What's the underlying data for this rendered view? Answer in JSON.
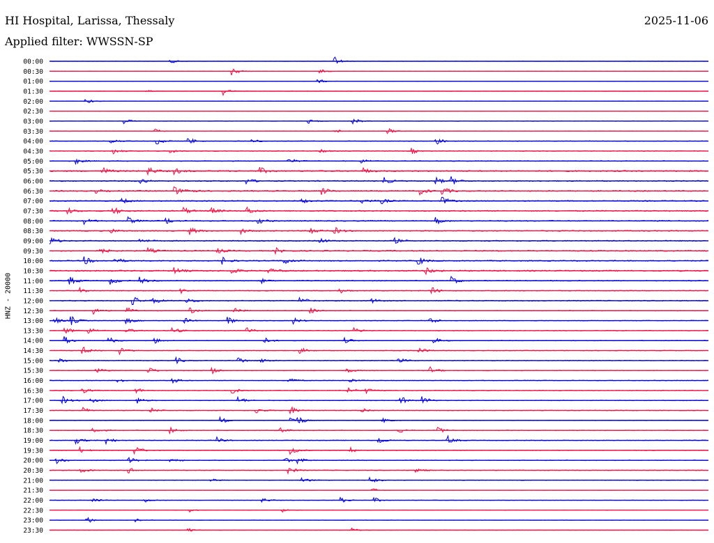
{
  "header": {
    "station": "HI Hospital, Larissa, Thessaly",
    "date": "2025-11-06",
    "filter_label": "Applied filter: WWSSN-SP"
  },
  "side_label": "HNZ - 20000",
  "colors": {
    "trace_a": "#0000dd",
    "trace_b": "#ee1144",
    "text": "#000000"
  },
  "chart_data": {
    "type": "line",
    "title": "HI Hospital, Larissa, Thessaly",
    "subtitle": "Applied filter: WWSSN-SP",
    "ylabel": "HNZ - 20000",
    "grid": false,
    "legend": "none",
    "series_colors_alternate": [
      "#0000dd",
      "#ee1144"
    ],
    "rows": [
      {
        "label": "00:00",
        "noise": 0.12,
        "events": [
          [
            5.5,
            0.5
          ],
          [
            13.0,
            0.9
          ]
        ]
      },
      {
        "label": "00:30",
        "noise": 0.14,
        "events": [
          [
            8.3,
            1.0
          ],
          [
            12.3,
            0.4
          ]
        ]
      },
      {
        "label": "01:00",
        "noise": 0.12,
        "events": [
          [
            12.2,
            0.5
          ]
        ]
      },
      {
        "label": "01:30",
        "noise": 0.14,
        "events": [
          [
            7.9,
            0.8
          ],
          [
            4.4,
            0.3
          ]
        ]
      },
      {
        "label": "02:00",
        "noise": 0.13,
        "events": [
          [
            1.6,
            0.7
          ]
        ]
      },
      {
        "label": "02:30",
        "noise": 0.12,
        "events": []
      },
      {
        "label": "03:00",
        "noise": 0.15,
        "events": [
          [
            3.4,
            0.6
          ],
          [
            11.8,
            0.5
          ],
          [
            13.8,
            0.8
          ]
        ]
      },
      {
        "label": "03:30",
        "noise": 0.2,
        "events": [
          [
            4.8,
            0.4
          ],
          [
            15.4,
            0.6
          ],
          [
            13.0,
            0.4
          ]
        ]
      },
      {
        "label": "04:00",
        "noise": 0.3,
        "events": [
          [
            2.8,
            0.5
          ],
          [
            4.9,
            0.7
          ],
          [
            6.3,
            0.8
          ],
          [
            9.2,
            0.5
          ],
          [
            17.6,
            0.9
          ]
        ]
      },
      {
        "label": "04:30",
        "noise": 0.3,
        "events": [
          [
            2.9,
            0.6
          ],
          [
            5.5,
            0.5
          ],
          [
            12.3,
            0.5
          ],
          [
            16.5,
            0.6
          ]
        ]
      },
      {
        "label": "05:00",
        "noise": 0.35,
        "events": [
          [
            1.2,
            0.6
          ],
          [
            10.9,
            0.6
          ],
          [
            14.2,
            0.5
          ]
        ]
      },
      {
        "label": "05:30",
        "noise": 0.55,
        "events": [
          [
            2.4,
            0.8
          ],
          [
            4.5,
            0.9
          ],
          [
            5.7,
            0.7
          ],
          [
            9.6,
            0.7
          ],
          [
            14.3,
            0.6
          ]
        ]
      },
      {
        "label": "06:00",
        "noise": 0.45,
        "events": [
          [
            4.1,
            0.7
          ],
          [
            9.0,
            0.6
          ],
          [
            15.2,
            0.8
          ],
          [
            17.6,
            0.7
          ],
          [
            18.3,
            0.9
          ]
        ]
      },
      {
        "label": "06:30",
        "noise": 0.5,
        "events": [
          [
            2.0,
            0.6
          ],
          [
            5.7,
            0.9
          ],
          [
            6.2,
            0.7
          ],
          [
            12.4,
            0.8
          ],
          [
            16.9,
            0.7
          ],
          [
            17.9,
            0.9
          ]
        ]
      },
      {
        "label": "07:00",
        "noise": 0.45,
        "events": [
          [
            3.3,
            0.6
          ],
          [
            11.5,
            0.5
          ],
          [
            14.2,
            0.6
          ],
          [
            15.1,
            0.6
          ],
          [
            17.9,
            0.8
          ]
        ]
      },
      {
        "label": "07:30",
        "noise": 0.5,
        "events": [
          [
            0.8,
            0.7
          ],
          [
            2.9,
            0.9
          ],
          [
            6.1,
            0.8
          ],
          [
            7.3,
            0.9
          ],
          [
            9.0,
            0.8
          ]
        ]
      },
      {
        "label": "08:00",
        "noise": 0.45,
        "events": [
          [
            1.6,
            0.6
          ],
          [
            3.6,
            0.7
          ],
          [
            5.3,
            0.7
          ],
          [
            9.5,
            0.6
          ],
          [
            17.6,
            0.7
          ]
        ]
      },
      {
        "label": "08:30",
        "noise": 0.45,
        "events": [
          [
            2.8,
            0.5
          ],
          [
            6.4,
            0.8
          ],
          [
            8.7,
            0.6
          ],
          [
            11.9,
            0.8
          ],
          [
            13.0,
            0.7
          ]
        ]
      },
      {
        "label": "09:00",
        "noise": 0.45,
        "events": [
          [
            0.0,
            0.9
          ],
          [
            4.1,
            0.6
          ],
          [
            12.3,
            0.6
          ],
          [
            15.7,
            0.6
          ]
        ]
      },
      {
        "label": "09:30",
        "noise": 0.5,
        "events": [
          [
            2.3,
            0.7
          ],
          [
            4.5,
            0.6
          ],
          [
            7.6,
            0.7
          ],
          [
            10.3,
            0.6
          ]
        ]
      },
      {
        "label": "10:00",
        "noise": 0.45,
        "events": [
          [
            1.6,
            0.8
          ],
          [
            3.0,
            0.7
          ],
          [
            7.9,
            0.7
          ],
          [
            10.7,
            0.8
          ],
          [
            16.8,
            0.9
          ]
        ]
      },
      {
        "label": "10:30",
        "noise": 0.55,
        "events": [
          [
            5.7,
            0.7
          ],
          [
            8.3,
            0.7
          ],
          [
            10.0,
            0.6
          ],
          [
            17.1,
            0.9
          ]
        ]
      },
      {
        "label": "11:00",
        "noise": 0.4,
        "events": [
          [
            0.9,
            0.9
          ],
          [
            2.8,
            0.7
          ],
          [
            4.1,
            0.7
          ],
          [
            9.6,
            0.6
          ],
          [
            18.3,
            0.9
          ]
        ]
      },
      {
        "label": "11:30",
        "noise": 0.35,
        "events": [
          [
            1.4,
            0.6
          ],
          [
            6.0,
            0.5
          ],
          [
            13.2,
            0.6
          ],
          [
            17.4,
            0.8
          ]
        ]
      },
      {
        "label": "12:00",
        "noise": 0.4,
        "events": [
          [
            3.8,
            0.9
          ],
          [
            4.7,
            0.8
          ],
          [
            6.2,
            0.9
          ],
          [
            11.4,
            0.8
          ],
          [
            14.6,
            0.6
          ]
        ]
      },
      {
        "label": "12:30",
        "noise": 0.3,
        "events": [
          [
            2.0,
            0.7
          ],
          [
            3.5,
            0.8
          ],
          [
            6.4,
            0.7
          ],
          [
            8.4,
            0.7
          ],
          [
            11.9,
            0.6
          ]
        ]
      },
      {
        "label": "13:00",
        "noise": 0.3,
        "events": [
          [
            0.2,
            0.8
          ],
          [
            1.0,
            0.9
          ],
          [
            3.5,
            0.7
          ],
          [
            6.1,
            0.7
          ],
          [
            8.1,
            0.9
          ],
          [
            11.1,
            0.7
          ],
          [
            17.3,
            0.9
          ]
        ]
      },
      {
        "label": "13:30",
        "noise": 0.3,
        "events": [
          [
            0.7,
            0.8
          ],
          [
            1.8,
            0.7
          ],
          [
            3.5,
            0.6
          ],
          [
            5.6,
            0.7
          ],
          [
            9.0,
            0.6
          ],
          [
            13.9,
            0.6
          ]
        ]
      },
      {
        "label": "14:00",
        "noise": 0.3,
        "events": [
          [
            0.7,
            0.8
          ],
          [
            2.7,
            0.7
          ],
          [
            4.8,
            0.6
          ],
          [
            9.8,
            0.6
          ],
          [
            13.4,
            0.6
          ],
          [
            17.5,
            0.7
          ]
        ]
      },
      {
        "label": "14:30",
        "noise": 0.3,
        "events": [
          [
            1.5,
            0.9
          ],
          [
            3.2,
            0.7
          ],
          [
            11.4,
            0.7
          ],
          [
            16.8,
            0.7
          ]
        ]
      },
      {
        "label": "15:00",
        "noise": 0.3,
        "events": [
          [
            0.4,
            0.7
          ],
          [
            5.8,
            0.6
          ],
          [
            8.6,
            0.8
          ],
          [
            9.6,
            0.6
          ],
          [
            15.9,
            0.6
          ]
        ]
      },
      {
        "label": "15:30",
        "noise": 0.3,
        "events": [
          [
            2.1,
            0.6
          ],
          [
            4.5,
            0.7
          ],
          [
            7.4,
            0.7
          ],
          [
            13.5,
            0.6
          ],
          [
            17.3,
            0.8
          ]
        ]
      },
      {
        "label": "16:00",
        "noise": 0.3,
        "events": [
          [
            3.1,
            0.6
          ],
          [
            5.6,
            0.6
          ],
          [
            10.9,
            0.7
          ],
          [
            13.6,
            0.6
          ]
        ]
      },
      {
        "label": "16:30",
        "noise": 0.3,
        "events": [
          [
            1.5,
            0.6
          ],
          [
            3.9,
            0.7
          ],
          [
            8.3,
            0.7
          ],
          [
            13.6,
            0.7
          ],
          [
            14.4,
            0.6
          ]
        ]
      },
      {
        "label": "17:00",
        "noise": 0.3,
        "events": [
          [
            0.6,
            0.8
          ],
          [
            1.9,
            0.7
          ],
          [
            4.0,
            0.6
          ],
          [
            8.6,
            0.8
          ],
          [
            16.0,
            0.8
          ],
          [
            17.0,
            0.8
          ]
        ]
      },
      {
        "label": "17:30",
        "noise": 0.3,
        "events": [
          [
            1.5,
            0.7
          ],
          [
            4.6,
            0.6
          ],
          [
            9.4,
            0.6
          ],
          [
            11.0,
            0.8
          ],
          [
            14.2,
            0.6
          ]
        ]
      },
      {
        "label": "18:00",
        "noise": 0.2,
        "events": [
          [
            7.8,
            0.7
          ],
          [
            11.0,
            0.7
          ],
          [
            11.3,
            0.8
          ],
          [
            15.1,
            0.6
          ]
        ]
      },
      {
        "label": "18:30",
        "noise": 0.3,
        "events": [
          [
            2.0,
            0.7
          ],
          [
            5.5,
            0.6
          ],
          [
            10.5,
            0.6
          ],
          [
            15.9,
            0.6
          ],
          [
            17.7,
            0.7
          ]
        ]
      },
      {
        "label": "19:00",
        "noise": 0.3,
        "events": [
          [
            1.2,
            0.8
          ],
          [
            2.6,
            0.8
          ],
          [
            7.6,
            0.7
          ],
          [
            15.0,
            0.7
          ],
          [
            18.1,
            1.0
          ]
        ]
      },
      {
        "label": "19:30",
        "noise": 0.3,
        "events": [
          [
            1.4,
            0.6
          ],
          [
            3.9,
            0.9
          ],
          [
            11.0,
            0.8
          ],
          [
            13.7,
            0.6
          ]
        ]
      },
      {
        "label": "20:00",
        "noise": 0.3,
        "events": [
          [
            0.3,
            0.8
          ],
          [
            3.6,
            0.7
          ],
          [
            5.5,
            0.7
          ],
          [
            10.7,
            0.6
          ],
          [
            11.3,
            0.6
          ]
        ]
      },
      {
        "label": "20:30",
        "noise": 0.3,
        "events": [
          [
            1.4,
            0.7
          ],
          [
            3.6,
            0.6
          ],
          [
            10.9,
            0.7
          ],
          [
            16.7,
            0.6
          ]
        ]
      },
      {
        "label": "21:00",
        "noise": 0.25,
        "events": [
          [
            7.3,
            0.5
          ],
          [
            11.5,
            0.7
          ],
          [
            14.6,
            0.8
          ]
        ]
      },
      {
        "label": "21:30",
        "noise": 0.15,
        "events": [
          [
            14.7,
            0.4
          ]
        ]
      },
      {
        "label": "22:00",
        "noise": 0.2,
        "events": [
          [
            2.0,
            0.6
          ],
          [
            4.3,
            0.6
          ],
          [
            9.7,
            0.5
          ],
          [
            13.2,
            0.7
          ],
          [
            14.8,
            0.5
          ]
        ]
      },
      {
        "label": "22:30",
        "noise": 0.15,
        "events": [
          [
            6.4,
            0.4
          ],
          [
            10.6,
            0.4
          ]
        ]
      },
      {
        "label": "23:00",
        "noise": 0.2,
        "events": [
          [
            1.7,
            0.7
          ],
          [
            3.9,
            0.3
          ]
        ]
      },
      {
        "label": "23:30",
        "noise": 0.13,
        "events": [
          [
            6.3,
            0.4
          ],
          [
            13.8,
            0.4
          ]
        ]
      }
    ]
  }
}
